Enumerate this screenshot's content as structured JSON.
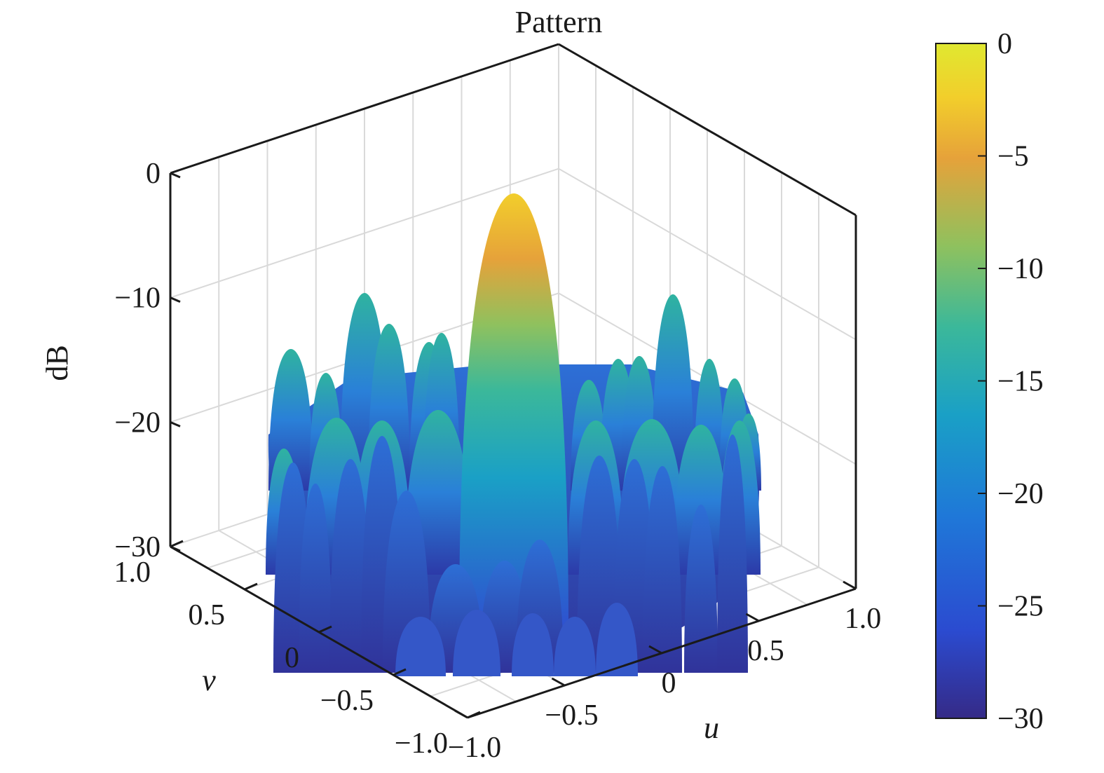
{
  "chart_data": {
    "type": "surface",
    "title": "Pattern",
    "xlabel": "u",
    "ylabel": "v",
    "zlabel": "dB",
    "xlim": [
      -1.0,
      1.0
    ],
    "ylim": [
      -1.0,
      1.0
    ],
    "zlim": [
      -30,
      0
    ],
    "x_ticks": [
      "−1.0",
      "−0.5",
      "0",
      "0.5",
      "1.0"
    ],
    "y_ticks": [
      "−1.0",
      "−0.5",
      "0",
      "0.5",
      "1.0"
    ],
    "z_ticks": [
      "−30",
      "−20",
      "−10",
      "0"
    ],
    "grid": true,
    "main_lobe": {
      "u": 0,
      "v": 0,
      "peak_db": 0
    },
    "sidelobe_peaks_db": [
      -11,
      -10,
      -14,
      -15,
      -12
    ],
    "colorbar": {
      "colormap": "parula",
      "range": [
        -30,
        0
      ],
      "ticks": [
        "0",
        "−5",
        "−10",
        "−15",
        "−20",
        "−25",
        "−30"
      ],
      "colors": [
        "#352a87",
        "#2b4bd0",
        "#1f78d8",
        "#1aa0c6",
        "#3bb89a",
        "#8fc15e",
        "#e6a23a",
        "#f2ce2b",
        "#f9f420"
      ]
    }
  }
}
